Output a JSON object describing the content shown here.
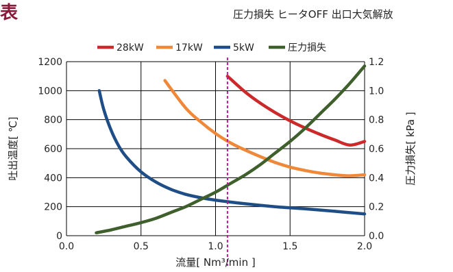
{
  "corner_mark": "表",
  "chart_data": {
    "type": "line",
    "title": "圧力損失 ヒータOFF 出口大気解放",
    "xlabel": "流量[ Nm³/min ]",
    "ylabel_left": "吐出温度[ ℃]",
    "ylabel_right": "圧力損失[ kPa ]",
    "xlim": [
      0,
      2
    ],
    "ylim_left": [
      0,
      1200
    ],
    "ylim_right": [
      0,
      1.2
    ],
    "x_ticks": [
      "0.0",
      "0.5",
      "1.0",
      "1.5",
      "2.0"
    ],
    "y_ticks_left": [
      "0",
      "200",
      "400",
      "600",
      "800",
      "1000",
      "1200"
    ],
    "y_ticks_right": [
      "0.0",
      "0.2",
      "0.4",
      "0.6",
      "0.8",
      "1.0",
      "1.2"
    ],
    "grid": true,
    "legend_position": "top",
    "reference_line": {
      "x": 1.08,
      "style": "dashed",
      "color": "#c0189a"
    },
    "series": [
      {
        "name": "28kW",
        "axis": "left",
        "color": "#cc2a2a",
        "x": [
          1.08,
          1.2,
          1.3,
          1.4,
          1.5,
          1.6,
          1.7,
          1.8,
          1.9,
          2.0
        ],
        "y": [
          1100,
          990,
          914,
          849,
          792,
          743,
          699,
          660,
          625,
          650
        ]
      },
      {
        "name": "17kW",
        "axis": "left",
        "color": "#f0883a",
        "x": [
          0.66,
          0.8,
          0.9,
          1.0,
          1.1,
          1.2,
          1.3,
          1.4,
          1.5,
          1.6,
          1.7,
          1.8,
          1.9,
          2.0
        ],
        "y": [
          1070,
          880,
          785,
          705,
          640,
          590,
          545,
          505,
          473,
          450,
          432,
          420,
          413,
          420
        ]
      },
      {
        "name": "5kW",
        "axis": "left",
        "color": "#1f4e86",
        "x": [
          0.22,
          0.25,
          0.3,
          0.35,
          0.4,
          0.5,
          0.6,
          0.7,
          0.8,
          0.9,
          1.0,
          1.2,
          1.4,
          1.6,
          1.8,
          2.0
        ],
        "y": [
          1000,
          870,
          725,
          620,
          545,
          440,
          370,
          320,
          285,
          262,
          245,
          220,
          200,
          185,
          168,
          150
        ]
      },
      {
        "name": "圧力損失",
        "axis": "right",
        "color": "#3f5f2c",
        "x": [
          0.2,
          0.3,
          0.4,
          0.5,
          0.6,
          0.7,
          0.8,
          0.9,
          1.0,
          1.1,
          1.2,
          1.3,
          1.4,
          1.5,
          1.6,
          1.7,
          1.8,
          1.9,
          2.0
        ],
        "y": [
          0.02,
          0.04,
          0.065,
          0.09,
          0.12,
          0.16,
          0.2,
          0.25,
          0.3,
          0.36,
          0.42,
          0.49,
          0.57,
          0.65,
          0.74,
          0.84,
          0.94,
          1.05,
          1.17
        ]
      }
    ]
  }
}
